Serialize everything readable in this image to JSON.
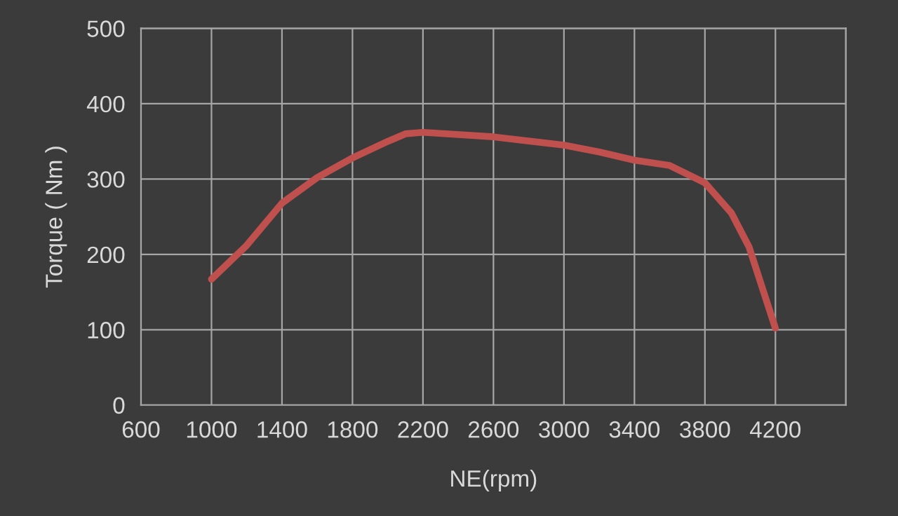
{
  "chart_data": {
    "type": "line",
    "xlabel": "NE(rpm)",
    "ylabel": "Torque ( Nm )",
    "x": [
      1000,
      1200,
      1400,
      1600,
      1800,
      2000,
      2100,
      2200,
      2600,
      3000,
      3200,
      3400,
      3600,
      3800,
      3950,
      4050,
      4200
    ],
    "series": [
      {
        "color": "#c0504d",
        "values": [
          167,
          212,
          268,
          302,
          328,
          350,
          360,
          362,
          356,
          345,
          336,
          325,
          318,
          295,
          255,
          210,
          102
        ]
      }
    ],
    "xlim": [
      600,
      4600
    ],
    "xticks": [
      600,
      1000,
      1400,
      1800,
      2200,
      2600,
      3000,
      3400,
      3800,
      4200,
      {
        "value": 4600,
        "label": null
      }
    ],
    "ylim": [
      0,
      500
    ],
    "yticks": [
      0,
      100,
      200,
      300,
      400,
      500
    ],
    "grid": true,
    "legend": false,
    "marker": "none",
    "line_style": "solid"
  }
}
